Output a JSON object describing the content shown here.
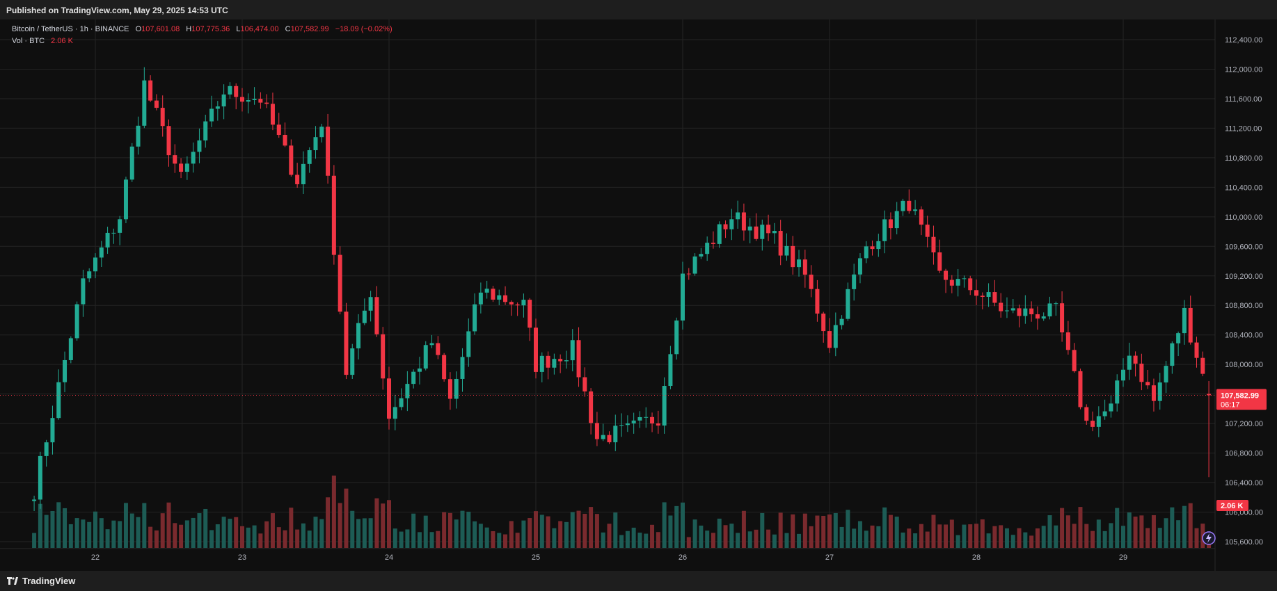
{
  "header": {
    "published": "Published on TradingView.com, May 29, 2025 14:53 UTC"
  },
  "footer": {
    "brand": "TradingView"
  },
  "legend": {
    "symbol": "Bitcoin / TetherUS · 1h · BINANCE",
    "open_label": "O",
    "open": "107,601.08",
    "high_label": "H",
    "high": "107,775.36",
    "low_label": "L",
    "low": "106,474.00",
    "close_label": "C",
    "close": "107,582.99",
    "change": "−18.09 (−0.02%)",
    "vol_label": "Vol · BTC",
    "vol_value": "2.06 K"
  },
  "badges": {
    "price": "107,582.99",
    "countdown": "06:17",
    "volume": "2.06 K"
  },
  "colors": {
    "up": "#22ab94",
    "down": "#f23645",
    "vol_up": "#1d5c55",
    "vol_down": "#7a2a2e",
    "grid": "#242424",
    "text": "#b2b5be"
  },
  "icons": {
    "brand_logo": "tradingview-logo-icon",
    "lightning": "lightning-icon"
  },
  "chart_data": {
    "type": "candlestick",
    "title": "Bitcoin / TetherUS · 1h · BINANCE",
    "interval": "1h",
    "ylim": [
      105500,
      112600
    ],
    "y_ticks": [
      "112,400.00",
      "112,000.00",
      "111,600.00",
      "111,200.00",
      "110,800.00",
      "110,400.00",
      "110,000.00",
      "109,600.00",
      "109,200.00",
      "108,800.00",
      "108,400.00",
      "108,000.00",
      "107,600.00",
      "107,200.00",
      "106,800.00",
      "106,400.00",
      "106,000.00",
      "105,600.00"
    ],
    "x_ticks": [
      "22",
      "23",
      "24",
      "25",
      "26",
      "27",
      "28",
      "29"
    ],
    "grid": true,
    "volume_series": "Vol · BTC",
    "key_closes": [
      {
        "x": "May 21 14:00",
        "y": 106300
      },
      {
        "x": "May 21 22:00",
        "y": 109100
      },
      {
        "x": "May 22 04:00",
        "y": 110000
      },
      {
        "x": "May 22 08:00",
        "y": 111800
      },
      {
        "x": "May 22 14:00",
        "y": 110500
      },
      {
        "x": "May 22 21:00",
        "y": 111700
      },
      {
        "x": "May 23 03:00",
        "y": 111600
      },
      {
        "x": "May 23 09:00",
        "y": 110500
      },
      {
        "x": "May 23 13:00",
        "y": 111300
      },
      {
        "x": "May 23 17:00",
        "y": 107900
      },
      {
        "x": "May 23 21:00",
        "y": 109000
      },
      {
        "x": "May 24 00:00",
        "y": 107300
      },
      {
        "x": "May 24 07:00",
        "y": 108300
      },
      {
        "x": "May 24 10:00",
        "y": 107500
      },
      {
        "x": "May 24 15:00",
        "y": 109000
      },
      {
        "x": "May 24 22:00",
        "y": 108800
      },
      {
        "x": "May 25 00:00",
        "y": 108000
      },
      {
        "x": "May 25 06:00",
        "y": 108200
      },
      {
        "x": "May 25 10:00",
        "y": 107000
      },
      {
        "x": "May 25 15:00",
        "y": 107100
      },
      {
        "x": "May 25 20:00",
        "y": 107300
      },
      {
        "x": "May 26 00:00",
        "y": 109200
      },
      {
        "x": "May 26 08:00",
        "y": 110000
      },
      {
        "x": "May 26 15:00",
        "y": 109700
      },
      {
        "x": "May 26 20:00",
        "y": 109200
      },
      {
        "x": "May 27 00:00",
        "y": 108300
      },
      {
        "x": "May 27 06:00",
        "y": 109600
      },
      {
        "x": "May 27 13:00",
        "y": 110200
      },
      {
        "x": "May 27 18:00",
        "y": 109200
      },
      {
        "x": "May 28 00:00",
        "y": 109000
      },
      {
        "x": "May 28 05:00",
        "y": 108700
      },
      {
        "x": "May 28 13:00",
        "y": 108700
      },
      {
        "x": "May 28 18:00",
        "y": 107200
      },
      {
        "x": "May 28 22:00",
        "y": 107400
      },
      {
        "x": "May 29 01:00",
        "y": 108200
      },
      {
        "x": "May 29 05:00",
        "y": 107500
      },
      {
        "x": "May 29 10:00",
        "y": 108700
      },
      {
        "x": "May 29 14:00",
        "y": 107583
      }
    ],
    "last": {
      "open": 107601.08,
      "high": 107775.36,
      "low": 106474.0,
      "close": 107582.99,
      "volume": "2.06 K"
    }
  }
}
